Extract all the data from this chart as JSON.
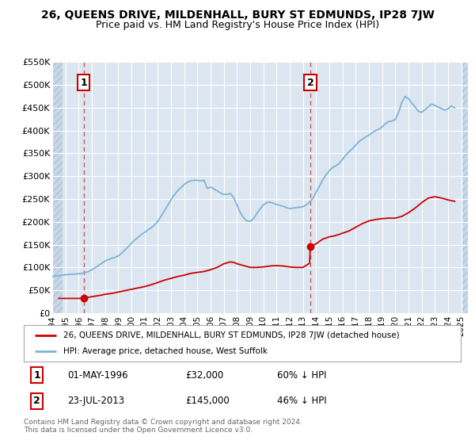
{
  "title": "26, QUEENS DRIVE, MILDENHALL, BURY ST EDMUNDS, IP28 7JW",
  "subtitle": "Price paid vs. HM Land Registry's House Price Index (HPI)",
  "background_color": "#ffffff",
  "plot_bg_color": "#dce6f1",
  "grid_color": "#ffffff",
  "ylim": [
    0,
    550000
  ],
  "xlim_start": 1994.0,
  "xlim_end": 2025.5,
  "yticks": [
    0,
    50000,
    100000,
    150000,
    200000,
    250000,
    300000,
    350000,
    400000,
    450000,
    500000,
    550000
  ],
  "ytick_labels": [
    "£0",
    "£50K",
    "£100K",
    "£150K",
    "£200K",
    "£250K",
    "£300K",
    "£350K",
    "£400K",
    "£450K",
    "£500K",
    "£550K"
  ],
  "xticks": [
    1994,
    1995,
    1996,
    1997,
    1998,
    1999,
    2000,
    2001,
    2002,
    2003,
    2004,
    2005,
    2006,
    2007,
    2008,
    2009,
    2010,
    2011,
    2012,
    2013,
    2014,
    2015,
    2016,
    2017,
    2018,
    2019,
    2020,
    2021,
    2022,
    2023,
    2024,
    2025
  ],
  "purchase1_x": 1996.37,
  "purchase1_y": 32000,
  "purchase1_label": "1",
  "purchase2_x": 2013.56,
  "purchase2_y": 145000,
  "purchase2_label": "2",
  "red_line_color": "#cc0000",
  "blue_line_color": "#7fb3d3",
  "marker_box_color": "#cc0000",
  "dashed_line_color": "#cc4444",
  "legend_label_red": "26, QUEENS DRIVE, MILDENHALL, BURY ST EDMUNDS, IP28 7JW (detached house)",
  "legend_label_blue": "HPI: Average price, detached house, West Suffolk",
  "note1_label": "1",
  "note1_date": "01-MAY-1996",
  "note1_price": "£32,000",
  "note1_hpi": "60% ↓ HPI",
  "note2_label": "2",
  "note2_date": "23-JUL-2013",
  "note2_price": "£145,000",
  "note2_hpi": "46% ↓ HPI",
  "copyright_text": "Contains HM Land Registry data © Crown copyright and database right 2024.\nThis data is licensed under the Open Government Licence v3.0.",
  "hpi_x": [
    1994.0,
    1994.25,
    1994.5,
    1994.75,
    1995.0,
    1995.25,
    1995.5,
    1995.75,
    1996.0,
    1996.25,
    1996.5,
    1996.75,
    1997.0,
    1997.25,
    1997.5,
    1997.75,
    1998.0,
    1998.25,
    1998.5,
    1998.75,
    1999.0,
    1999.25,
    1999.5,
    1999.75,
    2000.0,
    2000.25,
    2000.5,
    2000.75,
    2001.0,
    2001.25,
    2001.5,
    2001.75,
    2002.0,
    2002.25,
    2002.5,
    2002.75,
    2003.0,
    2003.25,
    2003.5,
    2003.75,
    2004.0,
    2004.25,
    2004.5,
    2004.75,
    2005.0,
    2005.25,
    2005.5,
    2005.75,
    2006.0,
    2006.25,
    2006.5,
    2006.75,
    2007.0,
    2007.25,
    2007.5,
    2007.75,
    2008.0,
    2008.25,
    2008.5,
    2008.75,
    2009.0,
    2009.25,
    2009.5,
    2009.75,
    2010.0,
    2010.25,
    2010.5,
    2010.75,
    2011.0,
    2011.25,
    2011.5,
    2011.75,
    2012.0,
    2012.25,
    2012.5,
    2012.75,
    2013.0,
    2013.25,
    2013.5,
    2013.75,
    2014.0,
    2014.25,
    2014.5,
    2014.75,
    2015.0,
    2015.25,
    2015.5,
    2015.75,
    2016.0,
    2016.25,
    2016.5,
    2016.75,
    2017.0,
    2017.25,
    2017.5,
    2017.75,
    2018.0,
    2018.25,
    2018.5,
    2018.75,
    2019.0,
    2019.25,
    2019.5,
    2019.75,
    2020.0,
    2020.25,
    2020.5,
    2020.75,
    2021.0,
    2021.25,
    2021.5,
    2021.75,
    2022.0,
    2022.25,
    2022.5,
    2022.75,
    2023.0,
    2023.25,
    2023.5,
    2023.75,
    2024.0,
    2024.25,
    2024.5
  ],
  "hpi_y": [
    80000,
    81000,
    82000,
    83000,
    84000,
    84500,
    85000,
    85500,
    86000,
    87000,
    88500,
    91000,
    95000,
    99000,
    104000,
    109000,
    114000,
    117000,
    120000,
    122000,
    125000,
    131000,
    138000,
    145000,
    153000,
    160000,
    166000,
    172000,
    177000,
    182000,
    187000,
    193000,
    201000,
    212000,
    224000,
    236000,
    248000,
    259000,
    268000,
    275000,
    282000,
    287000,
    290000,
    291000,
    291000,
    290000,
    291000,
    273000,
    276000,
    272000,
    268000,
    263000,
    260000,
    260000,
    262000,
    253000,
    237000,
    220000,
    209000,
    202000,
    201000,
    207000,
    218000,
    228000,
    237000,
    242000,
    243000,
    241000,
    238000,
    236000,
    234000,
    231000,
    229000,
    230000,
    231000,
    232000,
    233000,
    237000,
    243000,
    251000,
    265000,
    278000,
    292000,
    303000,
    312000,
    319000,
    323000,
    328000,
    337000,
    346000,
    354000,
    360000,
    368000,
    376000,
    381000,
    386000,
    390000,
    395000,
    400000,
    403000,
    408000,
    415000,
    420000,
    421000,
    424000,
    440000,
    462000,
    475000,
    470000,
    460000,
    452000,
    442000,
    440000,
    446000,
    452000,
    458000,
    455000,
    452000,
    448000,
    445000,
    448000,
    454000,
    450000
  ],
  "red_x": [
    1994.5,
    1996.37,
    1996.5,
    1997.0,
    1997.5,
    1998.0,
    1998.5,
    1999.0,
    1999.5,
    2000.0,
    2000.5,
    2001.0,
    2001.5,
    2002.0,
    2002.5,
    2003.0,
    2003.5,
    2004.0,
    2004.5,
    2005.0,
    2005.5,
    2006.0,
    2006.5,
    2007.0,
    2007.5,
    2007.75,
    2008.0,
    2008.5,
    2009.0,
    2009.5,
    2010.0,
    2010.5,
    2011.0,
    2011.5,
    2012.0,
    2012.5,
    2013.0,
    2013.5,
    2013.56,
    2014.0,
    2014.5,
    2015.0,
    2015.5,
    2016.0,
    2016.5,
    2017.0,
    2017.5,
    2018.0,
    2018.5,
    2019.0,
    2019.5,
    2020.0,
    2020.5,
    2021.0,
    2021.5,
    2022.0,
    2022.5,
    2023.0,
    2023.5,
    2024.0,
    2024.5
  ],
  "red_y": [
    32000,
    32000,
    33000,
    36000,
    38000,
    41000,
    43000,
    46000,
    49000,
    52000,
    55000,
    58000,
    62000,
    67000,
    72000,
    76000,
    80000,
    83000,
    87000,
    89000,
    91000,
    95000,
    100000,
    108000,
    112000,
    111000,
    108000,
    104000,
    100000,
    100000,
    101000,
    103000,
    104000,
    103000,
    101000,
    100000,
    100000,
    109000,
    145000,
    152000,
    162000,
    167000,
    170000,
    175000,
    180000,
    188000,
    196000,
    202000,
    205000,
    207000,
    208000,
    208000,
    212000,
    220000,
    230000,
    242000,
    252000,
    255000,
    252000,
    248000,
    245000
  ]
}
